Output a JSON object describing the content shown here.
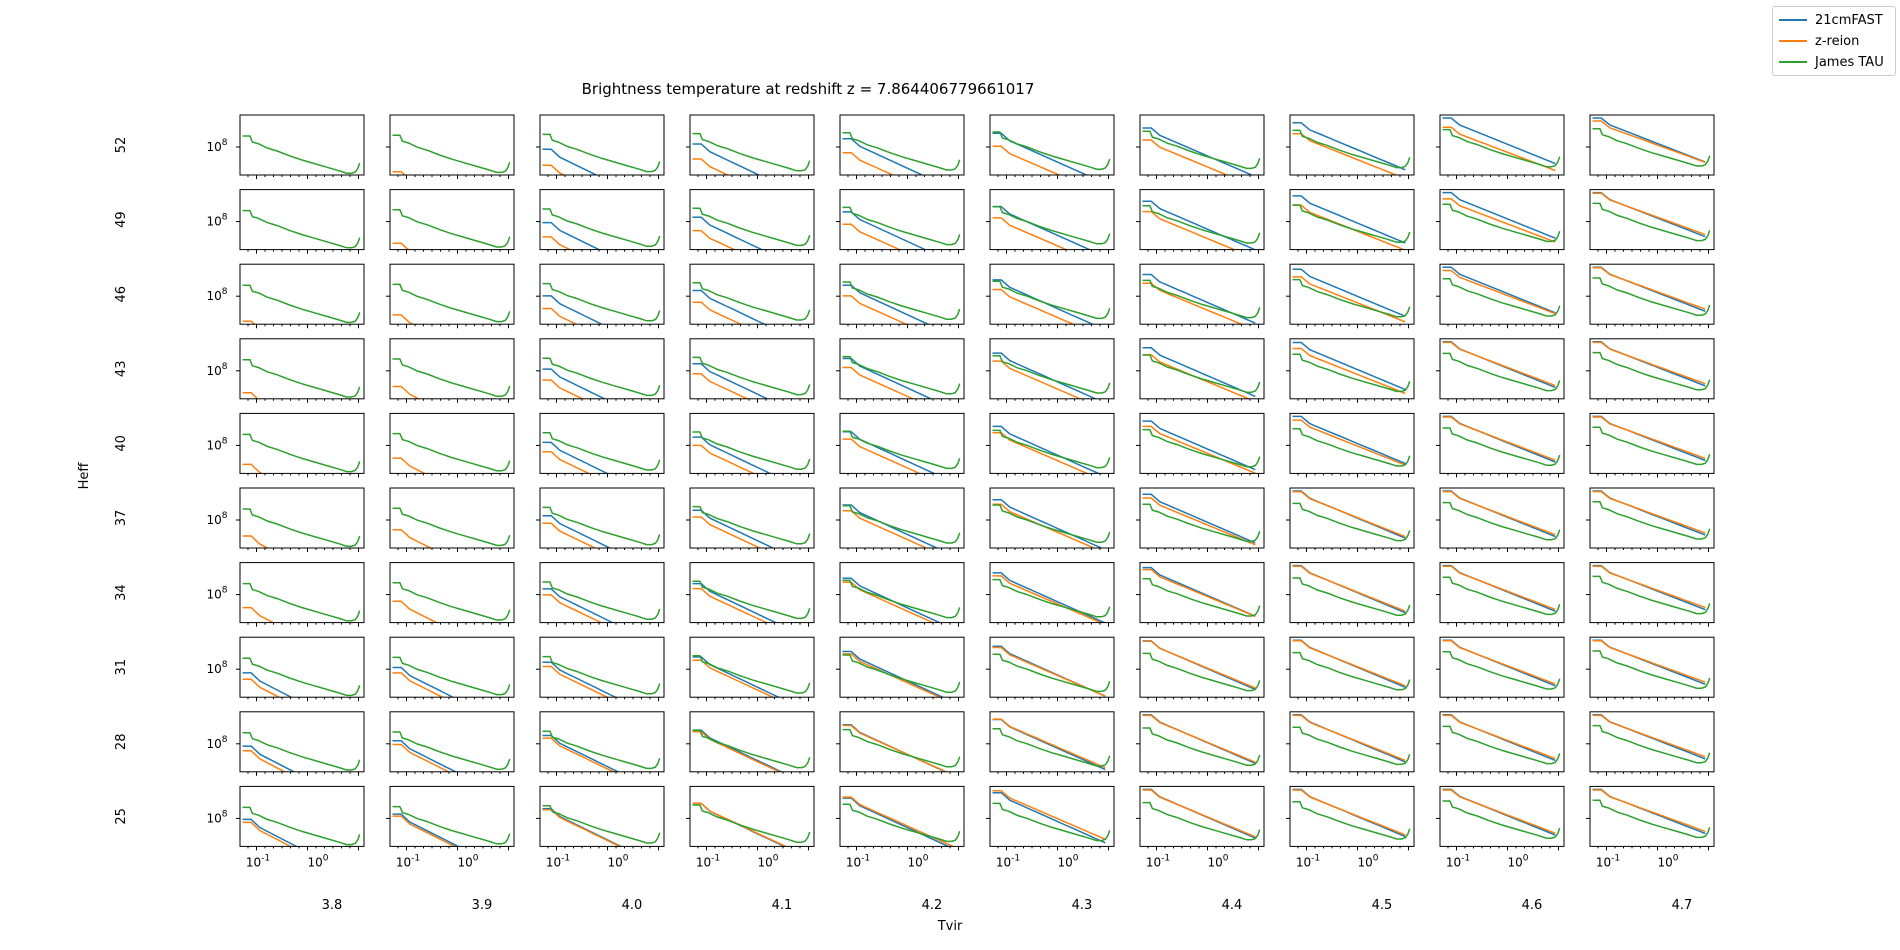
{
  "colors": {
    "series_21cmfast": "#1f77b4",
    "series_zreion": "#ff7f0e",
    "series_jamestau": "#2ca02c",
    "axis": "#000000",
    "background": "#ffffff"
  },
  "chart_data": {
    "type": "line",
    "layout": "small-multiples grid 10x10",
    "title": "Brightness temperature at redshift z = 7.864406779661017",
    "xlabel": "Tvir",
    "ylabel": "Heff",
    "column_labels": [
      "3.8",
      "3.9",
      "4.0",
      "4.1",
      "4.2",
      "4.3",
      "4.4",
      "4.5",
      "4.6",
      "4.7"
    ],
    "row_labels": [
      "52",
      "49",
      "46",
      "43",
      "40",
      "37",
      "34",
      "31",
      "28",
      "25"
    ],
    "x_scale": "log",
    "y_scale": "log",
    "x_tick_labels": [
      "10^-1",
      "10^0"
    ],
    "y_tick_label": "10^8",
    "legend": {
      "placement": "top-right",
      "entries": [
        "21cmFAST",
        "z-reion",
        "James TAU"
      ]
    },
    "series": [
      {
        "name": "21cmFAST",
        "color": "#1f77b4",
        "description": "per-panel curve, amplitude increasing with Tvir; nearly absent for low Tvir, high Heff"
      },
      {
        "name": "z-reion",
        "color": "#ff7f0e",
        "description": "per-panel curve, amplitude increasing with Tvir and decreasing with Heff"
      },
      {
        "name": "James TAU",
        "color": "#2ca02c",
        "description": "same shape in every panel: declining curve with a small upturn at the high-k end"
      }
    ]
  },
  "legend_labels": [
    "21cmFAST",
    "z-reion",
    "James TAU"
  ]
}
